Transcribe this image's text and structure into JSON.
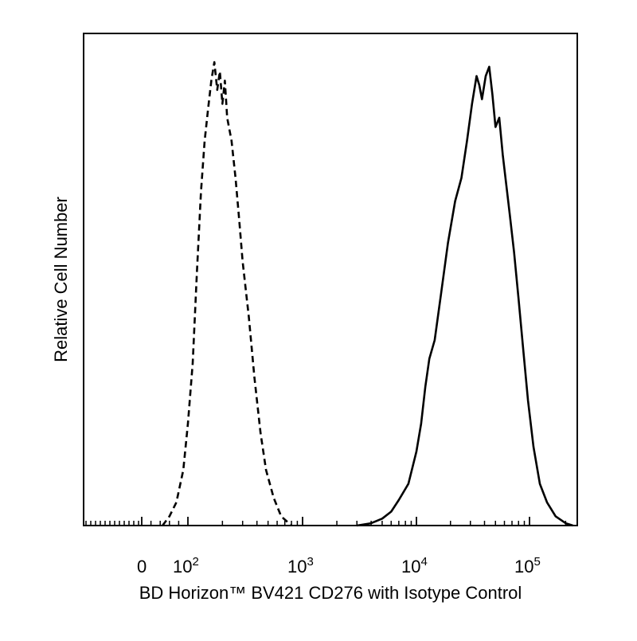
{
  "chart_data": {
    "type": "line",
    "title": "",
    "xlabel": "BD Horizon™ BV421 CD276 with Isotype Control",
    "ylabel": "Relative Cell Number",
    "x_scale": "biexponential",
    "xlim": [
      -500,
      250000
    ],
    "ylim": [
      0,
      1.0
    ],
    "grid": false,
    "legend": "none",
    "x_ticks": [
      {
        "value": 0,
        "base": "0",
        "exp": ""
      },
      {
        "value": 100,
        "base": "10",
        "exp": "2"
      },
      {
        "value": 1000,
        "base": "10",
        "exp": "3"
      },
      {
        "value": 10000,
        "base": "10",
        "exp": "4"
      },
      {
        "value": 100000,
        "base": "10",
        "exp": "5"
      }
    ],
    "series": [
      {
        "line_style": "dashed",
        "color": "#000000",
        "points": [
          [
            45,
            0.0
          ],
          [
            60,
            0.02
          ],
          [
            75,
            0.05
          ],
          [
            90,
            0.12
          ],
          [
            100,
            0.22
          ],
          [
            110,
            0.35
          ],
          [
            120,
            0.55
          ],
          [
            130,
            0.72
          ],
          [
            140,
            0.83
          ],
          [
            150,
            0.9
          ],
          [
            160,
            0.96
          ],
          [
            170,
            1.0
          ],
          [
            180,
            0.94
          ],
          [
            190,
            0.98
          ],
          [
            200,
            0.91
          ],
          [
            210,
            0.96
          ],
          [
            220,
            0.88
          ],
          [
            240,
            0.83
          ],
          [
            260,
            0.75
          ],
          [
            280,
            0.66
          ],
          [
            300,
            0.57
          ],
          [
            340,
            0.45
          ],
          [
            380,
            0.32
          ],
          [
            430,
            0.2
          ],
          [
            480,
            0.12
          ],
          [
            560,
            0.06
          ],
          [
            650,
            0.02
          ],
          [
            800,
            0.0
          ]
        ]
      },
      {
        "line_style": "solid",
        "color": "#000000",
        "points": [
          [
            3000,
            0.0
          ],
          [
            4000,
            0.005
          ],
          [
            5000,
            0.015
          ],
          [
            6000,
            0.03
          ],
          [
            7000,
            0.055
          ],
          [
            8500,
            0.09
          ],
          [
            10000,
            0.16
          ],
          [
            11000,
            0.22
          ],
          [
            12000,
            0.3
          ],
          [
            13000,
            0.36
          ],
          [
            14500,
            0.4
          ],
          [
            16500,
            0.5
          ],
          [
            19000,
            0.61
          ],
          [
            22000,
            0.7
          ],
          [
            25000,
            0.75
          ],
          [
            28000,
            0.83
          ],
          [
            31000,
            0.91
          ],
          [
            34000,
            0.97
          ],
          [
            36000,
            0.95
          ],
          [
            38000,
            0.92
          ],
          [
            41000,
            0.97
          ],
          [
            44000,
            0.99
          ],
          [
            47000,
            0.93
          ],
          [
            50000,
            0.86
          ],
          [
            54000,
            0.88
          ],
          [
            58000,
            0.8
          ],
          [
            62000,
            0.74
          ],
          [
            67000,
            0.67
          ],
          [
            73000,
            0.59
          ],
          [
            80000,
            0.49
          ],
          [
            88000,
            0.38
          ],
          [
            97000,
            0.27
          ],
          [
            108000,
            0.17
          ],
          [
            122000,
            0.09
          ],
          [
            140000,
            0.05
          ],
          [
            165000,
            0.02
          ],
          [
            200000,
            0.005
          ],
          [
            230000,
            0.0
          ]
        ]
      }
    ]
  }
}
